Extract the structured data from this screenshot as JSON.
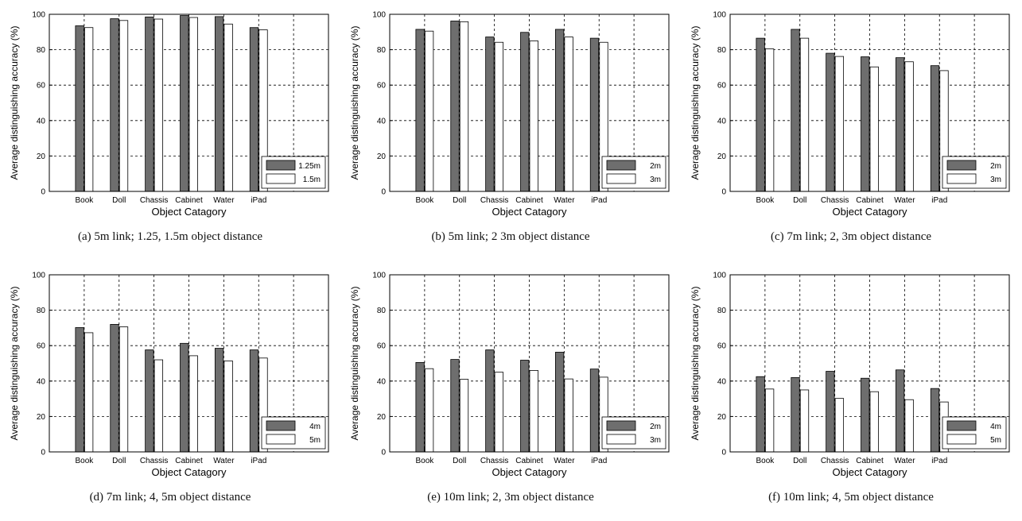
{
  "chart_data": [
    {
      "type": "bar",
      "xlabel": "Object Catagory",
      "ylabel": "Average distinguishing accuracy (%)",
      "ylim": [
        0,
        100
      ],
      "yticks": [
        0,
        20,
        40,
        60,
        80,
        100
      ],
      "categories": [
        "Book",
        "Doll",
        "Chassis",
        "Cabinet",
        "Water",
        "iPad"
      ],
      "series": [
        {
          "name": "1.25m",
          "color": "#6e6e6e",
          "values": [
            93.5,
            97.5,
            98.5,
            99.3,
            98.7,
            92.5
          ]
        },
        {
          "name": "1.5m",
          "color": "#ffffff",
          "values": [
            92.5,
            96.5,
            97.3,
            98.2,
            94.5,
            91.2
          ]
        }
      ],
      "grid": true,
      "legend_position": "bottom-right",
      "caption": "(a) 5m link; 1.25, 1.5m object distance"
    },
    {
      "type": "bar",
      "xlabel": "Object Catagory",
      "ylabel": "Average distinguishing accuracy (%)",
      "ylim": [
        0,
        100
      ],
      "yticks": [
        0,
        20,
        40,
        60,
        80,
        100
      ],
      "categories": [
        "Book",
        "Doll",
        "Chassis",
        "Cabinet",
        "Water",
        "iPad"
      ],
      "series": [
        {
          "name": "2m",
          "color": "#6e6e6e",
          "values": [
            91.5,
            96.2,
            87.2,
            89.8,
            91.5,
            86.5
          ]
        },
        {
          "name": "3m",
          "color": "#ffffff",
          "values": [
            90.5,
            95.8,
            84.2,
            85.0,
            87.2,
            84.2
          ]
        }
      ],
      "grid": true,
      "legend_position": "bottom-right",
      "caption": "(b) 5m link; 2 3m object distance"
    },
    {
      "type": "bar",
      "xlabel": "Object Catagory",
      "ylabel": "Average distinguishing accuracy (%)",
      "ylim": [
        0,
        100
      ],
      "yticks": [
        0,
        20,
        40,
        60,
        80,
        100
      ],
      "categories": [
        "Book",
        "Doll",
        "Chassis",
        "Cabinet",
        "Water",
        "iPad"
      ],
      "series": [
        {
          "name": "2m",
          "color": "#6e6e6e",
          "values": [
            86.5,
            91.5,
            78.0,
            76.0,
            75.5,
            71.0
          ]
        },
        {
          "name": "3m",
          "color": "#ffffff",
          "values": [
            80.5,
            86.5,
            76.2,
            70.3,
            73.2,
            68.2
          ]
        }
      ],
      "grid": true,
      "legend_position": "bottom-right",
      "caption": "(c) 7m link; 2, 3m object distance"
    },
    {
      "type": "bar",
      "xlabel": "Object Catagory",
      "ylabel": "Average distinguishing accuracy (%)",
      "ylim": [
        0,
        100
      ],
      "yticks": [
        0,
        20,
        40,
        60,
        80,
        100
      ],
      "categories": [
        "Book",
        "Doll",
        "Chassis",
        "Cabinet",
        "Water",
        "iPad"
      ],
      "series": [
        {
          "name": "4m",
          "color": "#6e6e6e",
          "values": [
            70.2,
            72.0,
            57.6,
            61.3,
            58.5,
            57.6
          ]
        },
        {
          "name": "5m",
          "color": "#ffffff",
          "values": [
            67.3,
            70.6,
            52.0,
            54.3,
            51.4,
            53.0
          ]
        }
      ],
      "grid": true,
      "legend_position": "bottom-right",
      "caption": "(d) 7m link; 4, 5m object distance"
    },
    {
      "type": "bar",
      "xlabel": "Object Catagory",
      "ylabel": "Average distinguishing accuracy (%)",
      "ylim": [
        0,
        100
      ],
      "yticks": [
        0,
        20,
        40,
        60,
        80,
        100
      ],
      "categories": [
        "Book",
        "Doll",
        "Chassis",
        "Cabinet",
        "Water",
        "iPad"
      ],
      "series": [
        {
          "name": "2m",
          "color": "#6e6e6e",
          "values": [
            50.5,
            52.2,
            57.6,
            51.8,
            56.3,
            46.8
          ]
        },
        {
          "name": "3m",
          "color": "#ffffff",
          "values": [
            47.0,
            41.0,
            45.0,
            46.0,
            41.2,
            42.2
          ]
        }
      ],
      "grid": true,
      "legend_position": "bottom-right",
      "caption": "(e) 10m link; 2, 3m object distance"
    },
    {
      "type": "bar",
      "xlabel": "Object Catagory",
      "ylabel": "Average distinguishing accuracy (%)",
      "ylim": [
        0,
        100
      ],
      "yticks": [
        0,
        20,
        40,
        60,
        80,
        100
      ],
      "categories": [
        "Book",
        "Doll",
        "Chassis",
        "Cabinet",
        "Water",
        "iPad"
      ],
      "series": [
        {
          "name": "4m",
          "color": "#6e6e6e",
          "values": [
            42.5,
            42.0,
            45.5,
            41.6,
            46.3,
            35.8
          ]
        },
        {
          "name": "5m",
          "color": "#ffffff",
          "values": [
            35.5,
            35.0,
            30.2,
            34.0,
            29.5,
            28.2
          ]
        }
      ],
      "grid": true,
      "legend_position": "bottom-right",
      "caption": "(f) 10m link; 4, 5m object distance"
    }
  ]
}
